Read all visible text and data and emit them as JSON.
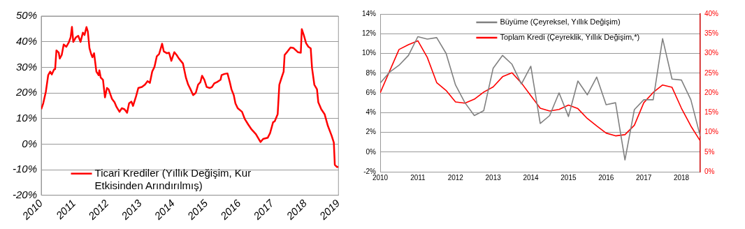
{
  "chart_data": [
    {
      "type": "line",
      "x": [
        2010.0,
        2010.06,
        2010.14,
        2010.21,
        2010.27,
        2010.32,
        2010.39,
        2010.42,
        2010.46,
        2010.53,
        2010.56,
        2010.62,
        2010.68,
        2010.76,
        2010.84,
        2010.89,
        2010.93,
        2010.97,
        2011.05,
        2011.12,
        2011.19,
        2011.26,
        2011.31,
        2011.37,
        2011.41,
        2011.46,
        2011.51,
        2011.55,
        2011.6,
        2011.67,
        2011.74,
        2011.76,
        2011.8,
        2011.87,
        2011.93,
        2011.99,
        2012.04,
        2012.14,
        2012.22,
        2012.28,
        2012.37,
        2012.44,
        2012.52,
        2012.6,
        2012.66,
        2012.73,
        2012.78,
        2012.87,
        2012.94,
        2013.05,
        2013.14,
        2013.22,
        2013.29,
        2013.36,
        2013.43,
        2013.5,
        2013.57,
        2013.66,
        2013.71,
        2013.8,
        2013.87,
        2013.94,
        2014.03,
        2014.1,
        2014.17,
        2014.29,
        2014.38,
        2014.45,
        2014.52,
        2014.6,
        2014.68,
        2014.75,
        2014.82,
        2014.87,
        2014.94,
        2015.01,
        2015.1,
        2015.17,
        2015.24,
        2015.32,
        2015.43,
        2015.46,
        2015.55,
        2015.64,
        2015.71,
        2015.76,
        2015.83,
        2015.88,
        2015.95,
        2016.08,
        2016.16,
        2016.27,
        2016.37,
        2016.5,
        2016.64,
        2016.72,
        2016.86,
        2016.93,
        2017.02,
        2017.07,
        2017.16,
        2017.21,
        2017.28,
        2017.34,
        2017.37,
        2017.46,
        2017.55,
        2017.64,
        2017.77,
        2017.86,
        2017.89,
        2017.95,
        2018.02,
        2018.09,
        2018.16,
        2018.2,
        2018.27,
        2018.35,
        2018.39,
        2018.48,
        2018.58,
        2018.68,
        2018.79,
        2018.86,
        2018.89,
        2018.96,
        2019.0
      ],
      "series": [
        {
          "name": "Ticari Krediler (Yıllık Değişim, Kur Etkisinden Arındırılmış)",
          "color": "#ff0000",
          "values": [
            13.6,
            15.9,
            20.5,
            26.9,
            28.3,
            27.2,
            29.2,
            29.2,
            36.6,
            35.7,
            33.4,
            34.8,
            38.9,
            38.0,
            39.9,
            41.7,
            45.8,
            39.9,
            41.7,
            42.3,
            39.9,
            43.5,
            42.6,
            45.7,
            44.0,
            37.5,
            35.2,
            33.9,
            35.5,
            28.3,
            26.9,
            28.8,
            26.0,
            25.1,
            18.2,
            21.9,
            21.4,
            17.7,
            16.3,
            14.5,
            12.6,
            14.0,
            13.6,
            12.2,
            15.9,
            16.6,
            14.9,
            18.6,
            21.9,
            22.3,
            23.2,
            24.6,
            23.9,
            28.3,
            30.2,
            34.3,
            35.2,
            39.2,
            36.2,
            35.5,
            35.7,
            32.5,
            35.9,
            34.8,
            33.4,
            31.5,
            26.0,
            23.2,
            21.4,
            19.1,
            20.0,
            23.2,
            24.2,
            26.7,
            25.1,
            22.3,
            21.9,
            22.3,
            23.7,
            24.2,
            25.1,
            26.9,
            27.4,
            27.6,
            24.2,
            21.4,
            19.1,
            15.9,
            14.0,
            12.6,
            9.9,
            7.6,
            5.7,
            3.9,
            0.8,
            2.0,
            2.5,
            4.3,
            8.5,
            8.9,
            11.7,
            23.2,
            26.0,
            28.3,
            34.8,
            36.2,
            37.7,
            37.5,
            35.9,
            35.7,
            44.9,
            42.6,
            39.4,
            38.0,
            37.4,
            29.7,
            23.2,
            21.4,
            16.3,
            13.6,
            11.7,
            7.1,
            3.4,
            0.6,
            -8.1,
            -9.0,
            -8.9
          ]
        }
      ],
      "xlim": [
        2010,
        2019
      ],
      "xticks": [
        2010,
        2011,
        2012,
        2013,
        2014,
        2015,
        2016,
        2017,
        2018,
        2019
      ],
      "ylim": [
        -20,
        50
      ],
      "yticks": [
        {
          "value": -20,
          "label": "-20%"
        },
        {
          "value": -10,
          "label": "-10%"
        },
        {
          "value": 0,
          "label": "0%"
        },
        {
          "value": 10,
          "label": "10%"
        },
        {
          "value": 20,
          "label": "20%"
        },
        {
          "value": 30,
          "label": "30%"
        },
        {
          "value": 40,
          "label": "40%"
        },
        {
          "value": 50,
          "label": "50%"
        }
      ],
      "grid": "y",
      "legend": "bottom",
      "marker": "none"
    },
    {
      "type": "line",
      "x": [
        2010.0,
        2010.25,
        2010.5,
        2010.75,
        2011.0,
        2011.25,
        2011.5,
        2011.75,
        2012.0,
        2012.25,
        2012.5,
        2012.75,
        2013.0,
        2013.25,
        2013.5,
        2013.75,
        2014.0,
        2014.25,
        2014.5,
        2014.75,
        2015.0,
        2015.25,
        2015.5,
        2015.75,
        2016.0,
        2016.25,
        2016.5,
        2016.75,
        2017.0,
        2017.25,
        2017.5,
        2017.75,
        2018.0,
        2018.25,
        2018.5
      ],
      "series": [
        {
          "name": "Büyüme (Çeyreksel, Yıllık Değişim)",
          "color": "#808080",
          "values": [
            7.0,
            8.1,
            8.8,
            9.8,
            11.7,
            11.45,
            11.6,
            10.0,
            6.8,
            5.0,
            3.7,
            4.2,
            8.5,
            9.8,
            8.9,
            6.9,
            8.7,
            2.9,
            3.7,
            6.0,
            3.6,
            7.2,
            5.8,
            7.6,
            4.8,
            5.0,
            -0.8,
            4.3,
            5.3,
            5.3,
            11.5,
            7.4,
            7.3,
            5.3,
            1.6
          ]
        },
        {
          "name": "Toplam Kredi (Çeyreklik, Yıllık Değişim,*)",
          "color": "#ff0000",
          "axis": "y2",
          "values": [
            20,
            25.5,
            31,
            32.2,
            33.2,
            29,
            22.6,
            20.6,
            17.7,
            17.4,
            18.4,
            20.2,
            21.5,
            24.1,
            25.1,
            22.5,
            19.3,
            16.1,
            15.4,
            15.8,
            16.9,
            16.0,
            13.5,
            11.6,
            9.8,
            9.1,
            9.4,
            11.8,
            17.5,
            20.1,
            22.0,
            21.4,
            16.1,
            11.6,
            7.8
          ]
        }
      ],
      "xlim": [
        2010,
        2018.5
      ],
      "xticks": [
        2010,
        2011,
        2012,
        2013,
        2014,
        2015,
        2016,
        2017,
        2018
      ],
      "ylim": [
        -2,
        14
      ],
      "yticks": [
        {
          "value": -2,
          "label": "-2%"
        },
        {
          "value": 0,
          "label": "0%"
        },
        {
          "value": 2,
          "label": "2%"
        },
        {
          "value": 4,
          "label": "4%"
        },
        {
          "value": 6,
          "label": "6%"
        },
        {
          "value": 8,
          "label": "8%"
        },
        {
          "value": 10,
          "label": "10%"
        },
        {
          "value": 12,
          "label": "12%"
        },
        {
          "value": 14,
          "label": "14%"
        }
      ],
      "y2lim": [
        0,
        40
      ],
      "y2ticks": [
        {
          "value": 0,
          "label": "0%"
        },
        {
          "value": 5,
          "label": "5%"
        },
        {
          "value": 10,
          "label": "10%"
        },
        {
          "value": 15,
          "label": "15%"
        },
        {
          "value": 20,
          "label": "20%"
        },
        {
          "value": 25,
          "label": "25%"
        },
        {
          "value": 30,
          "label": "30%"
        },
        {
          "value": 35,
          "label": "35%"
        },
        {
          "value": 40,
          "label": "40%"
        }
      ],
      "grid": "y",
      "legend": "top",
      "marker": "none"
    }
  ]
}
